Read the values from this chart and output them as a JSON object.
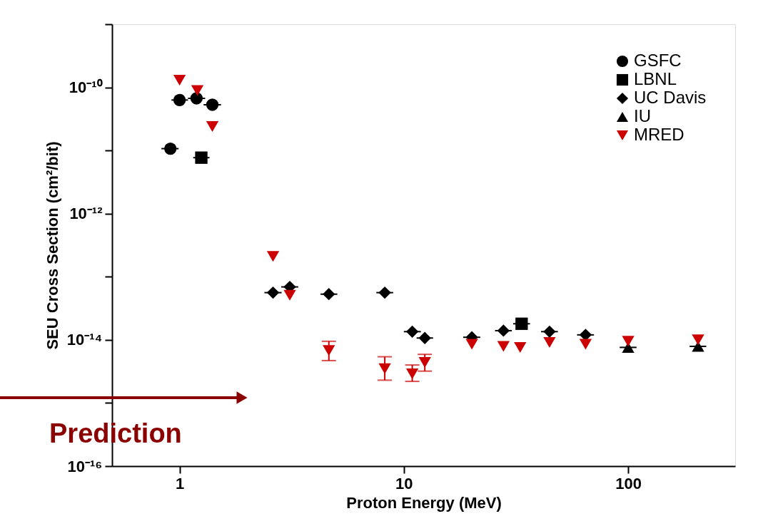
{
  "chart_data": {
    "type": "scatter",
    "xlabel": "Proton Energy (MeV)",
    "ylabel": "SEU Cross Section (cm²/bit)",
    "log": "xy",
    "xlim": [
      0.5,
      300
    ],
    "ylim": [
      1e-16,
      1e-09
    ],
    "xticks": [
      1,
      10,
      100
    ],
    "yticks": [
      {
        "value": 1e-16,
        "label": "10⁻¹⁶"
      },
      {
        "value": 1e-15,
        "label": null
      },
      {
        "value": 1e-14,
        "label": "10⁻¹⁴"
      },
      {
        "value": 1e-13,
        "label": null
      },
      {
        "value": 1e-12,
        "label": "10⁻¹²"
      },
      {
        "value": 1e-11,
        "label": null
      },
      {
        "value": 1e-10,
        "label": "10⁻¹⁰"
      },
      {
        "value": 1e-09,
        "label": null
      }
    ],
    "grid": false,
    "legend": "top right",
    "series": [
      {
        "name": "GSFC",
        "color": "#000000",
        "marker": "circle",
        "x": [
          0.91,
          1.0,
          1.19,
          1.4
        ],
        "values": [
          1.07e-11,
          6.3e-11,
          6.7e-11,
          5.3e-11
        ],
        "xerrors": [
          [
            0.83,
            0.99
          ],
          [
            0.92,
            1.09
          ],
          [
            1.09,
            1.3
          ],
          [
            1.28,
            1.53
          ]
        ]
      },
      {
        "name": "LBNL",
        "color": "#000000",
        "marker": "square",
        "x": [
          1.25,
          33.5
        ],
        "values": [
          7.7e-12,
          1.8e-14
        ],
        "xerrors": [
          [
            1.15,
            1.36
          ],
          [
            30.7,
            36.5
          ]
        ]
      },
      {
        "name": "UC Davis",
        "color": "#000000",
        "marker": "diamond",
        "x": [
          2.61,
          3.1,
          4.63,
          8.22,
          10.9,
          12.4,
          20.1,
          27.8,
          44.6,
          64.6
        ],
        "values": [
          5.6e-14,
          6.9e-14,
          5.3e-14,
          5.6e-14,
          1.35e-14,
          1.07e-14,
          1.1e-14,
          1.4e-14,
          1.35e-14,
          1.2e-14
        ],
        "xerrors": [
          [
            2.39,
            2.85
          ],
          [
            2.84,
            3.38
          ],
          [
            4.25,
            5.05
          ],
          [
            7.54,
            8.96
          ],
          [
            10.0,
            11.9
          ],
          [
            11.4,
            13.5
          ],
          [
            18.4,
            21.9
          ],
          [
            25.5,
            30.3
          ],
          [
            40.9,
            48.6
          ],
          [
            59.2,
            70.4
          ]
        ]
      },
      {
        "name": "IU",
        "color": "#000000",
        "marker": "triangle",
        "x": [
          100,
          205
        ],
        "values": [
          7.6e-15,
          7.9e-15
        ],
        "xerrors": [
          [
            91.7,
            109
          ],
          [
            188,
            223
          ]
        ]
      },
      {
        "name": "MRED",
        "color": "#cc0000",
        "marker": "triangle-down",
        "x": [
          1.0,
          1.2,
          1.4,
          2.61,
          3.1,
          4.63,
          8.22,
          10.9,
          12.4,
          20.1,
          27.8,
          33.0,
          44.6,
          64.6,
          100,
          205
        ],
        "values": [
          1.3e-10,
          8.9e-11,
          2.4e-11,
          2.1e-13,
          5.1e-14,
          6.8e-15,
          3.5e-15,
          2.9e-15,
          4.4e-15,
          8.5e-15,
          7.9e-15,
          7.6e-15,
          9.1e-15,
          8.5e-15,
          9.5e-15,
          1e-14
        ],
        "errors": [
          null,
          null,
          null,
          null,
          null,
          [
            4.7e-15,
            9.5e-15
          ],
          [
            2.3e-15,
            5.4e-15
          ],
          [
            2.2e-15,
            4e-15
          ],
          [
            3.2e-15,
            5.9e-15
          ],
          null,
          null,
          null,
          null,
          null,
          null,
          null
        ]
      }
    ],
    "annotations": [
      "Prediction"
    ]
  }
}
